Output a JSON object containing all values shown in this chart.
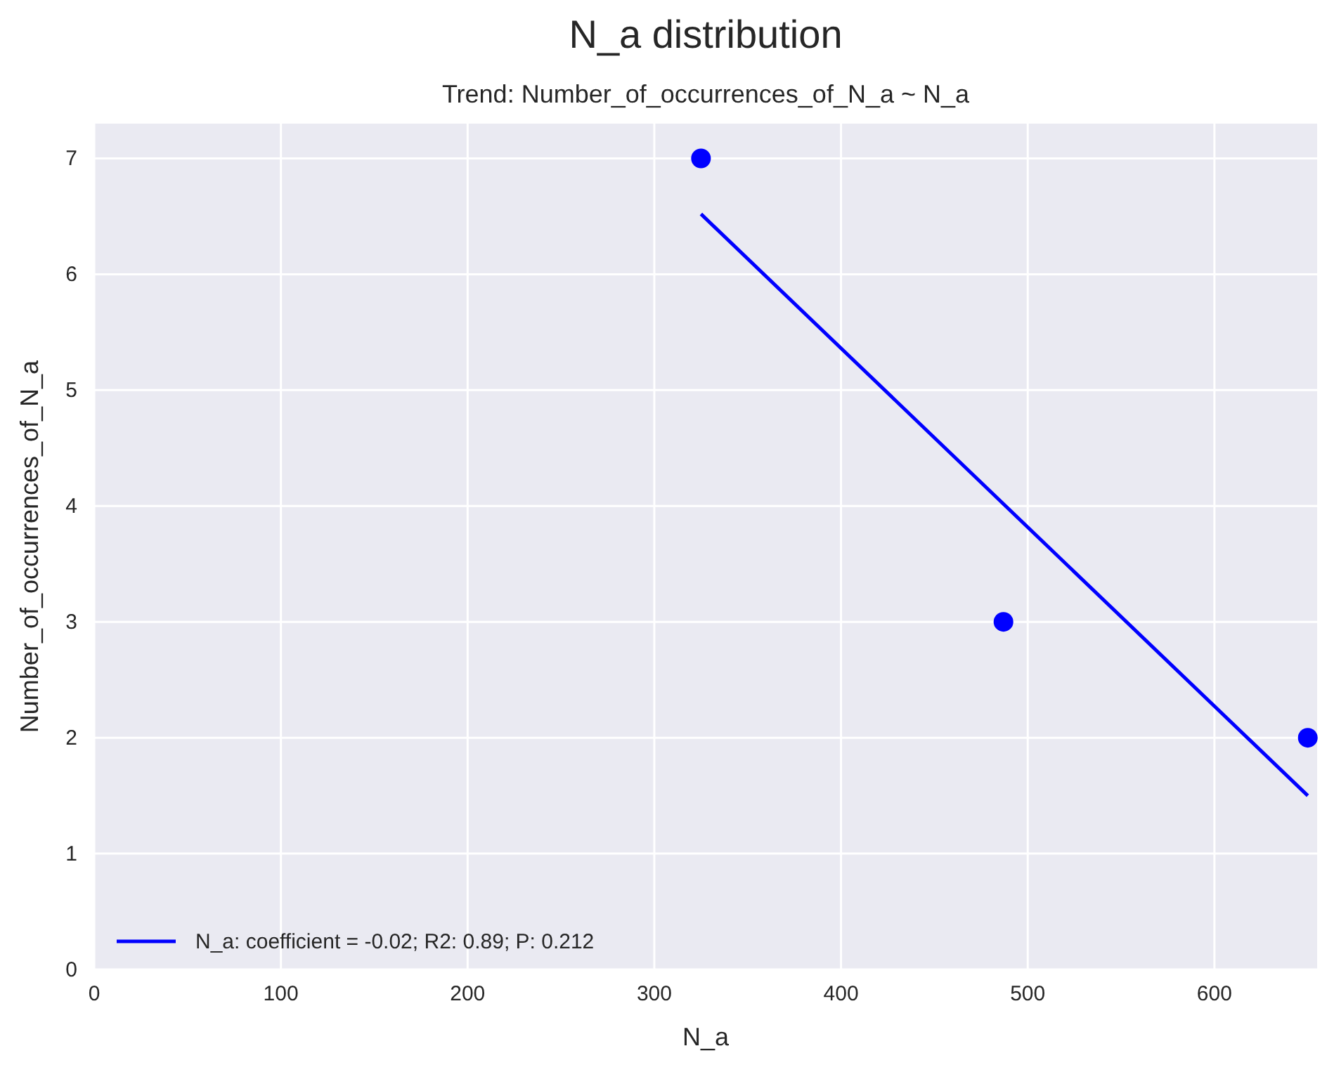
{
  "chart_data": {
    "type": "scatter",
    "title": "N_a distribution",
    "subtitle": "Trend: Number_of_occurrences_of_N_a ~ N_a",
    "xlabel": "N_a",
    "ylabel": "Number_of_occurrences_of_N_a",
    "xlim": [
      0,
      655
    ],
    "xticks": [
      0,
      100,
      200,
      300,
      400,
      500,
      600
    ],
    "ylim": [
      0,
      7.3
    ],
    "yticks": [
      0,
      1,
      2,
      3,
      4,
      5,
      6,
      7
    ],
    "grid": true,
    "legend": "bottom left",
    "series": [
      {
        "color": "#0000ff",
        "marker": "circle",
        "x": [
          325,
          487,
          650
        ],
        "values": [
          7,
          3,
          2
        ]
      },
      {
        "type": "line",
        "name": "N_a: coefficient = -0.02; R2: 0.89; P: 0.212",
        "color": "#0000ff",
        "line_style": "solid",
        "x": [
          325,
          650
        ],
        "values": [
          6.52,
          1.5
        ]
      }
    ]
  }
}
